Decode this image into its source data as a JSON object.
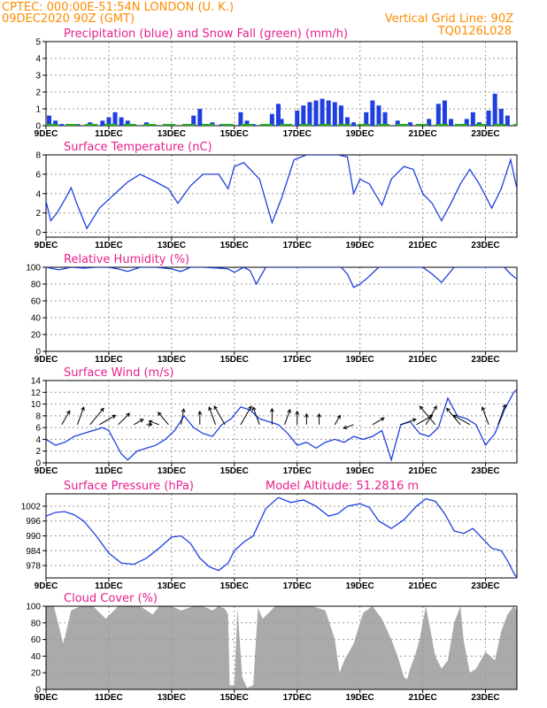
{
  "header": {
    "station": "CPTEC:   000:00E-51:54N   LONDON  (U. K.)",
    "run": "09DEC2020 90Z (GMT)",
    "grid_note": "Vertical Grid Line: 90Z",
    "code": "TQ0126L028"
  },
  "colors": {
    "header": "#ff8c00",
    "title": "#e8208c",
    "line": "#1f3fe0",
    "snow": "#22aa22",
    "cloud": "#aaaaaa"
  },
  "x_axis": {
    "ticks": [
      "9DEC",
      "11DEC",
      "13DEC",
      "15DEC",
      "17DEC",
      "19DEC",
      "21DEC",
      "23DEC"
    ],
    "tick_days": [
      9,
      11,
      13,
      15,
      17,
      19,
      21,
      23
    ],
    "range": [
      9,
      24
    ]
  },
  "chart_data": [
    {
      "type": "bar",
      "title": "Precipitation (blue) and Snow Fall (green) (mm/h)",
      "ylim": [
        0,
        5
      ],
      "yticks": [
        "0",
        "1",
        "2",
        "3",
        "4",
        "5"
      ],
      "x": [
        9.1,
        9.3,
        9.5,
        10.0,
        10.4,
        10.8,
        11.0,
        11.2,
        11.4,
        11.6,
        12.2,
        13.5,
        13.7,
        13.9,
        14.3,
        14.6,
        15.2,
        15.4,
        15.6,
        16.2,
        16.4,
        16.5,
        17.0,
        17.2,
        17.4,
        17.6,
        17.8,
        18.0,
        18.2,
        18.4,
        18.6,
        18.8,
        19.2,
        19.4,
        19.6,
        19.8,
        20.2,
        20.6,
        21.2,
        21.5,
        21.7,
        21.9,
        22.4,
        22.6,
        22.8,
        23.1,
        23.3,
        23.5,
        23.7
      ],
      "series": [
        {
          "values": [
            0.6,
            0.3,
            0.1,
            0.1,
            0.2,
            0.3,
            0.5,
            0.8,
            0.5,
            0.3,
            0.2,
            0.1,
            0.6,
            1.0,
            0.2,
            0.1,
            0.8,
            0.3,
            0.1,
            0.7,
            1.3,
            0.4,
            0.9,
            1.2,
            1.4,
            1.5,
            1.6,
            1.5,
            1.4,
            1.2,
            0.5,
            0.2,
            0.8,
            1.5,
            1.2,
            0.8,
            0.3,
            0.2,
            0.4,
            1.3,
            1.5,
            0.4,
            0.4,
            0.8,
            0.2,
            0.9,
            1.9,
            1.0,
            0.6
          ]
        }
      ]
    },
    {
      "type": "line",
      "title": "Surface Temperature (nC)",
      "ylim": [
        -0.5,
        8
      ],
      "yticks": [
        "0",
        "2",
        "4",
        "6",
        "8"
      ],
      "x": [
        9.0,
        9.15,
        9.35,
        9.6,
        9.8,
        10.0,
        10.3,
        10.7,
        11.2,
        11.6,
        12.0,
        12.5,
        12.9,
        13.2,
        13.6,
        14.0,
        14.5,
        14.8,
        15.0,
        15.3,
        15.8,
        16.2,
        16.5,
        16.9,
        17.3,
        17.6,
        18.0,
        18.3,
        18.6,
        18.8,
        19.0,
        19.3,
        19.7,
        20.0,
        20.4,
        20.7,
        21.0,
        21.3,
        21.6,
        21.9,
        22.2,
        22.5,
        22.8,
        23.2,
        23.5,
        23.8,
        24.0
      ],
      "series": [
        {
          "values": [
            3.2,
            1.2,
            2.0,
            3.4,
            4.6,
            2.8,
            0.4,
            2.5,
            4.0,
            5.2,
            6.0,
            5.2,
            4.5,
            3.0,
            4.8,
            6.0,
            6.0,
            4.5,
            6.8,
            7.2,
            5.5,
            1.0,
            3.5,
            7.5,
            8.0,
            8.0,
            8.0,
            8.0,
            7.8,
            4.0,
            5.5,
            5.0,
            2.8,
            5.5,
            6.8,
            6.5,
            4.0,
            3.0,
            1.2,
            3.0,
            5.0,
            6.5,
            5.0,
            2.5,
            4.5,
            7.5,
            4.5
          ]
        }
      ]
    },
    {
      "type": "line",
      "title": "Relative Humidity (%)",
      "ylim": [
        0,
        100
      ],
      "yticks": [
        "0",
        "20",
        "40",
        "60",
        "80",
        "100"
      ],
      "x": [
        9.0,
        9.4,
        9.8,
        10.2,
        10.6,
        11.0,
        11.3,
        11.6,
        12.0,
        12.5,
        13.0,
        13.3,
        13.6,
        14.0,
        14.5,
        14.8,
        15.0,
        15.3,
        15.5,
        15.7,
        16.0,
        16.4,
        16.8,
        17.2,
        17.6,
        18.0,
        18.4,
        18.6,
        18.8,
        19.0,
        19.2,
        19.6,
        20.0,
        20.4,
        20.7,
        21.0,
        21.3,
        21.6,
        22.0,
        22.4,
        22.8,
        23.2,
        23.6,
        23.8,
        24.0
      ],
      "series": [
        {
          "values": [
            100,
            97,
            100,
            99,
            100,
            100,
            98,
            95,
            100,
            100,
            98,
            95,
            100,
            100,
            99,
            98,
            94,
            100,
            96,
            80,
            100,
            100,
            100,
            100,
            100,
            100,
            100,
            92,
            76,
            80,
            86,
            100,
            100,
            100,
            100,
            100,
            92,
            82,
            100,
            100,
            100,
            100,
            100,
            92,
            86
          ]
        }
      ]
    },
    {
      "type": "line",
      "title": "Surface Wind (m/s)",
      "ylim": [
        0,
        14
      ],
      "yticks": [
        "0",
        "2",
        "4",
        "6",
        "8",
        "10",
        "12",
        "14"
      ],
      "x": [
        9.0,
        9.3,
        9.6,
        9.9,
        10.2,
        10.5,
        10.8,
        11.0,
        11.2,
        11.4,
        11.6,
        11.9,
        12.2,
        12.5,
        12.8,
        13.1,
        13.4,
        13.7,
        14.0,
        14.3,
        14.6,
        14.9,
        15.2,
        15.5,
        15.8,
        16.1,
        16.4,
        16.7,
        17.0,
        17.3,
        17.6,
        17.9,
        18.2,
        18.5,
        18.8,
        19.1,
        19.4,
        19.7,
        20.0,
        20.3,
        20.6,
        20.9,
        21.2,
        21.5,
        21.8,
        22.1,
        22.4,
        22.7,
        23.0,
        23.3,
        23.6,
        23.9,
        24.0
      ],
      "series": [
        {
          "values": [
            4.0,
            3.0,
            3.5,
            4.5,
            5.0,
            5.5,
            6.0,
            5.5,
            3.5,
            1.5,
            0.5,
            2.0,
            2.5,
            3.0,
            4.0,
            5.5,
            8.0,
            6.0,
            5.0,
            4.5,
            6.5,
            7.5,
            9.5,
            9.0,
            7.5,
            7.0,
            6.5,
            5.0,
            3.0,
            3.5,
            2.5,
            3.5,
            4.0,
            3.5,
            4.5,
            4.0,
            4.5,
            5.5,
            0.5,
            6.5,
            7.0,
            5.0,
            4.5,
            6.0,
            11.0,
            8.0,
            7.5,
            6.5,
            3.0,
            5.0,
            9.0,
            12.0,
            12.5
          ]
        }
      ],
      "arrows": [
        {
          "x": 9.5,
          "speed": 6,
          "dir": 30
        },
        {
          "x": 10.0,
          "speed": 7,
          "dir": 20
        },
        {
          "x": 10.4,
          "speed": 8,
          "dir": 40
        },
        {
          "x": 10.7,
          "speed": 7,
          "dir": 60
        },
        {
          "x": 11.3,
          "speed": 6,
          "dir": 45
        },
        {
          "x": 11.8,
          "speed": 4,
          "dir": 60
        },
        {
          "x": 12.2,
          "speed": 2,
          "dir": 90
        },
        {
          "x": 12.6,
          "speed": 4,
          "dir": 290
        },
        {
          "x": 12.9,
          "speed": 6,
          "dir": 320
        },
        {
          "x": 13.3,
          "speed": 6,
          "dir": 10
        },
        {
          "x": 13.9,
          "speed": 5,
          "dir": 0
        },
        {
          "x": 14.4,
          "speed": 7,
          "dir": 340
        },
        {
          "x": 14.7,
          "speed": 8,
          "dir": 330
        },
        {
          "x": 15.2,
          "speed": 8,
          "dir": 30
        },
        {
          "x": 15.8,
          "speed": 7,
          "dir": 340
        },
        {
          "x": 16.2,
          "speed": 6,
          "dir": 0
        },
        {
          "x": 16.6,
          "speed": 6,
          "dir": 20
        },
        {
          "x": 17.0,
          "speed": 5,
          "dir": 0
        },
        {
          "x": 17.3,
          "speed": 4,
          "dir": 0
        },
        {
          "x": 17.7,
          "speed": 4,
          "dir": 0
        },
        {
          "x": 18.2,
          "speed": 4,
          "dir": 30
        },
        {
          "x": 18.8,
          "speed": 4,
          "dir": 250
        },
        {
          "x": 19.4,
          "speed": 5,
          "dir": 60
        },
        {
          "x": 20.3,
          "speed": 6,
          "dir": 70
        },
        {
          "x": 20.8,
          "speed": 7,
          "dir": 60
        },
        {
          "x": 21.1,
          "speed": 8,
          "dir": 30
        },
        {
          "x": 21.4,
          "speed": 9,
          "dir": 320
        },
        {
          "x": 22.2,
          "speed": 8,
          "dir": 320
        },
        {
          "x": 22.5,
          "speed": 7,
          "dir": 300
        },
        {
          "x": 23.1,
          "speed": 7,
          "dir": 340
        },
        {
          "x": 23.4,
          "speed": 8,
          "dir": 20
        }
      ]
    },
    {
      "type": "line",
      "title": "Surface Pressure (hPa)",
      "annotation": "Model Altitude: 51.2816 m",
      "ylim": [
        973,
        1007
      ],
      "yticks": [
        "978",
        "984",
        "990",
        "996",
        "1002"
      ],
      "x": [
        9.0,
        9.3,
        9.6,
        9.9,
        10.2,
        10.6,
        11.0,
        11.4,
        11.8,
        12.2,
        12.6,
        13.0,
        13.3,
        13.6,
        13.9,
        14.2,
        14.5,
        14.8,
        15.0,
        15.3,
        15.6,
        16.0,
        16.4,
        16.8,
        17.2,
        17.6,
        18.0,
        18.3,
        18.6,
        19.0,
        19.3,
        19.6,
        20.0,
        20.4,
        20.8,
        21.1,
        21.4,
        21.7,
        22.0,
        22.3,
        22.6,
        22.9,
        23.2,
        23.5,
        23.7,
        23.9,
        24.0
      ],
      "series": [
        {
          "values": [
            998.0,
            999.5,
            999.8,
            998.5,
            996.0,
            990.0,
            983.0,
            979.0,
            978.5,
            981.0,
            985.0,
            989.5,
            990.0,
            987.0,
            981.0,
            977.5,
            976.0,
            979.0,
            984.0,
            987.5,
            990.0,
            1001.0,
            1005.5,
            1003.5,
            1004.5,
            1002.0,
            998.0,
            999.0,
            1002.0,
            1003.0,
            1001.5,
            996.0,
            993.0,
            996.5,
            1002.0,
            1005.0,
            1004.0,
            999.0,
            992.0,
            991.0,
            993.0,
            989.0,
            985.0,
            984.0,
            980.0,
            975.0,
            973.0
          ]
        }
      ]
    },
    {
      "type": "area",
      "title": "Cloud Cover (%)",
      "ylim": [
        0,
        100
      ],
      "yticks": [
        "0",
        "20",
        "40",
        "60",
        "80",
        "100"
      ],
      "x": [
        9.0,
        9.25,
        9.55,
        9.8,
        10.1,
        10.5,
        10.9,
        11.3,
        11.6,
        12.0,
        12.4,
        12.6,
        13.0,
        13.3,
        13.7,
        14.0,
        14.3,
        14.5,
        14.7,
        14.8,
        14.85,
        15.0,
        15.1,
        15.25,
        15.4,
        15.6,
        15.75,
        15.9,
        16.3,
        16.7,
        17.1,
        17.5,
        17.9,
        18.2,
        18.35,
        18.5,
        18.8,
        19.1,
        19.4,
        19.7,
        20.0,
        20.2,
        20.4,
        20.5,
        20.6,
        20.75,
        20.9,
        21.1,
        21.2,
        21.4,
        21.6,
        21.8,
        22.0,
        22.2,
        22.3,
        22.5,
        22.7,
        23.0,
        23.3,
        23.5,
        23.7,
        23.9,
        24.0
      ],
      "series": [
        {
          "values": [
            100,
            100,
            55,
            95,
            100,
            100,
            85,
            100,
            100,
            100,
            90,
            100,
            100,
            95,
            100,
            100,
            95,
            100,
            97,
            90,
            5,
            5,
            98,
            15,
            2,
            5,
            98,
            85,
            100,
            100,
            100,
            100,
            95,
            60,
            20,
            35,
            55,
            92,
            100,
            85,
            60,
            40,
            15,
            12,
            25,
            40,
            60,
            100,
            80,
            40,
            25,
            35,
            80,
            100,
            60,
            20,
            25,
            45,
            35,
            70,
            90,
            100,
            95
          ]
        }
      ]
    }
  ]
}
